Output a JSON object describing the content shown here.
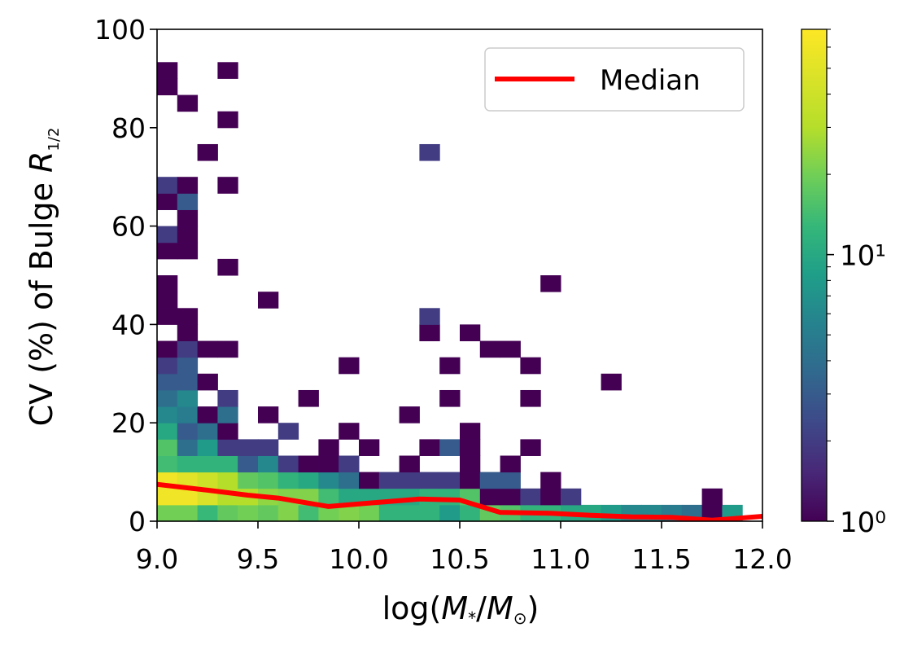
{
  "chart_data": {
    "type": "heatmap",
    "title": "",
    "xlabel": "log(M*/M⊙)",
    "ylabel": "CV (%) of Bulge R1/2",
    "xlim": [
      9.0,
      12.0
    ],
    "ylim": [
      0,
      100
    ],
    "x_ticks": [
      9.0,
      9.5,
      10.0,
      10.5,
      11.0,
      11.5,
      12.0
    ],
    "x_tick_labels": [
      "9.0",
      "9.5",
      "10.0",
      "10.5",
      "11.0",
      "11.5",
      "12.0"
    ],
    "y_ticks": [
      0,
      20,
      40,
      60,
      80,
      100
    ],
    "y_tick_labels": [
      "0",
      "20",
      "40",
      "60",
      "80",
      "100"
    ],
    "bin_width_x": 0.1,
    "bin_width_y": 3.33,
    "colormap": "viridis",
    "colorbar": {
      "scale": "log",
      "min": 1,
      "max": 70,
      "tick_labels": [
        "10⁰",
        "10¹"
      ],
      "tick_values": [
        1,
        10
      ]
    },
    "cells": [
      [
        9.0,
        0.0,
        20
      ],
      [
        9.1,
        0.0,
        20
      ],
      [
        9.2,
        0.0,
        13
      ],
      [
        9.3,
        0.0,
        18
      ],
      [
        9.4,
        0.0,
        20
      ],
      [
        9.5,
        0.0,
        18
      ],
      [
        9.6,
        0.0,
        22
      ],
      [
        9.7,
        0.0,
        14
      ],
      [
        9.8,
        0.0,
        20
      ],
      [
        9.9,
        0.0,
        22
      ],
      [
        10.0,
        0.0,
        20
      ],
      [
        10.1,
        0.0,
        12
      ],
      [
        10.2,
        0.0,
        12
      ],
      [
        10.3,
        0.0,
        12
      ],
      [
        10.4,
        0.0,
        8
      ],
      [
        10.5,
        0.0,
        12
      ],
      [
        10.6,
        0.0,
        18
      ],
      [
        10.7,
        0.0,
        16
      ],
      [
        10.8,
        0.0,
        12
      ],
      [
        10.9,
        0.0,
        12
      ],
      [
        11.0,
        0.0,
        10
      ],
      [
        11.1,
        0.0,
        10
      ],
      [
        11.2,
        0.0,
        8
      ],
      [
        11.3,
        0.0,
        6
      ],
      [
        11.4,
        0.0,
        6
      ],
      [
        11.5,
        0.0,
        5
      ],
      [
        11.6,
        0.0,
        4
      ],
      [
        11.7,
        0.0,
        1
      ],
      [
        11.8,
        0.0,
        8
      ],
      [
        9.0,
        3.33,
        60
      ],
      [
        9.1,
        3.33,
        60
      ],
      [
        9.2,
        3.33,
        45
      ],
      [
        9.3,
        3.33,
        30
      ],
      [
        9.4,
        3.33,
        30
      ],
      [
        9.5,
        3.33,
        24
      ],
      [
        9.6,
        3.33,
        22
      ],
      [
        9.7,
        3.33,
        22
      ],
      [
        9.8,
        3.33,
        14
      ],
      [
        9.9,
        3.33,
        10
      ],
      [
        10.0,
        3.33,
        10
      ],
      [
        10.1,
        3.33,
        10
      ],
      [
        10.2,
        3.33,
        10
      ],
      [
        10.3,
        3.33,
        12
      ],
      [
        10.4,
        3.33,
        12
      ],
      [
        10.5,
        3.33,
        16
      ],
      [
        10.6,
        3.33,
        1
      ],
      [
        10.7,
        3.33,
        1
      ],
      [
        10.8,
        3.33,
        2
      ],
      [
        10.9,
        3.33,
        1
      ],
      [
        11.0,
        3.33,
        2
      ],
      [
        11.7,
        3.33,
        1
      ],
      [
        9.0,
        6.67,
        60
      ],
      [
        9.1,
        6.67,
        50
      ],
      [
        9.2,
        6.67,
        40
      ],
      [
        9.3,
        6.67,
        30
      ],
      [
        9.4,
        6.67,
        18
      ],
      [
        9.5,
        6.67,
        16
      ],
      [
        9.6,
        6.67,
        12
      ],
      [
        9.7,
        6.67,
        10
      ],
      [
        9.8,
        6.67,
        6
      ],
      [
        9.9,
        6.67,
        4
      ],
      [
        10.0,
        6.67,
        1
      ],
      [
        10.1,
        6.67,
        2
      ],
      [
        10.2,
        6.67,
        2
      ],
      [
        10.3,
        6.67,
        2
      ],
      [
        10.4,
        6.67,
        2
      ],
      [
        10.5,
        6.67,
        1
      ],
      [
        10.6,
        6.67,
        3
      ],
      [
        10.7,
        6.67,
        3
      ],
      [
        10.9,
        6.67,
        1
      ],
      [
        9.0,
        10.0,
        14
      ],
      [
        9.1,
        10.0,
        12
      ],
      [
        9.2,
        10.0,
        12
      ],
      [
        9.3,
        10.0,
        12
      ],
      [
        9.4,
        10.0,
        3
      ],
      [
        9.5,
        10.0,
        6
      ],
      [
        9.6,
        10.0,
        2
      ],
      [
        9.7,
        10.0,
        1
      ],
      [
        9.8,
        10.0,
        1
      ],
      [
        9.9,
        10.0,
        2
      ],
      [
        10.2,
        10.0,
        1
      ],
      [
        10.5,
        10.0,
        1
      ],
      [
        10.7,
        10.0,
        1
      ],
      [
        9.0,
        13.33,
        16
      ],
      [
        9.1,
        13.33,
        4
      ],
      [
        9.2,
        13.33,
        8
      ],
      [
        9.3,
        13.33,
        2
      ],
      [
        9.4,
        13.33,
        2
      ],
      [
        9.5,
        13.33,
        2
      ],
      [
        9.8,
        13.33,
        1
      ],
      [
        10.0,
        13.33,
        1
      ],
      [
        10.3,
        13.33,
        1
      ],
      [
        10.4,
        13.33,
        3
      ],
      [
        10.5,
        13.33,
        1
      ],
      [
        10.8,
        13.33,
        1
      ],
      [
        9.0,
        16.67,
        10
      ],
      [
        9.1,
        16.67,
        3
      ],
      [
        9.2,
        16.67,
        4
      ],
      [
        9.3,
        16.67,
        1
      ],
      [
        9.6,
        16.67,
        2
      ],
      [
        9.9,
        16.67,
        1
      ],
      [
        10.5,
        16.67,
        1
      ],
      [
        9.0,
        20.0,
        6
      ],
      [
        9.1,
        20.0,
        5
      ],
      [
        9.2,
        20.0,
        1
      ],
      [
        9.3,
        20.0,
        4
      ],
      [
        9.5,
        20.0,
        1
      ],
      [
        10.2,
        20.0,
        1
      ],
      [
        9.0,
        23.33,
        4
      ],
      [
        9.1,
        23.33,
        6
      ],
      [
        9.3,
        23.33,
        2
      ],
      [
        9.7,
        23.33,
        1
      ],
      [
        10.4,
        23.33,
        1
      ],
      [
        10.8,
        23.33,
        1
      ],
      [
        9.0,
        26.67,
        3
      ],
      [
        9.1,
        26.67,
        3
      ],
      [
        9.2,
        26.67,
        1
      ],
      [
        11.2,
        26.67,
        1
      ],
      [
        9.0,
        30.0,
        2
      ],
      [
        9.1,
        30.0,
        3
      ],
      [
        9.9,
        30.0,
        1
      ],
      [
        10.4,
        30.0,
        1
      ],
      [
        10.8,
        30.0,
        1
      ],
      [
        9.0,
        33.33,
        1
      ],
      [
        9.1,
        33.33,
        2
      ],
      [
        9.2,
        33.33,
        1
      ],
      [
        9.3,
        33.33,
        1
      ],
      [
        10.6,
        33.33,
        1
      ],
      [
        10.7,
        33.33,
        1
      ],
      [
        9.1,
        36.67,
        1
      ],
      [
        10.3,
        36.67,
        1
      ],
      [
        10.5,
        36.67,
        1
      ],
      [
        9.0,
        40.0,
        1
      ],
      [
        9.1,
        40.0,
        1
      ],
      [
        10.3,
        40.0,
        2
      ],
      [
        9.0,
        43.33,
        1
      ],
      [
        9.5,
        43.33,
        1
      ],
      [
        9.0,
        46.67,
        1
      ],
      [
        10.9,
        46.67,
        1
      ],
      [
        9.3,
        50.0,
        1
      ],
      [
        9.0,
        53.33,
        1
      ],
      [
        9.1,
        53.33,
        1
      ],
      [
        9.0,
        56.67,
        2
      ],
      [
        9.1,
        56.67,
        1
      ],
      [
        9.1,
        60.0,
        1
      ],
      [
        9.0,
        63.33,
        1
      ],
      [
        9.1,
        63.33,
        3
      ],
      [
        9.0,
        66.67,
        2
      ],
      [
        9.1,
        66.67,
        1
      ],
      [
        9.3,
        66.67,
        1
      ],
      [
        10.3,
        73.33,
        2
      ],
      [
        9.2,
        73.33,
        1
      ],
      [
        9.3,
        80.0,
        1
      ],
      [
        9.1,
        83.33,
        1
      ],
      [
        9.0,
        86.67,
        1
      ],
      [
        9.0,
        90.0,
        1
      ],
      [
        9.3,
        90.0,
        1
      ]
    ],
    "series": [
      {
        "name": "Median",
        "color": "#ff0000",
        "x": [
          9.0,
          9.25,
          9.45,
          9.6,
          9.85,
          10.05,
          10.3,
          10.5,
          10.7,
          10.95,
          11.15,
          11.35,
          11.55,
          11.75,
          12.0
        ],
        "y": [
          7.5,
          6.3,
          5.3,
          4.7,
          3.0,
          3.7,
          4.5,
          4.3,
          1.8,
          1.6,
          1.2,
          0.9,
          0.8,
          0.2,
          1.0
        ]
      }
    ],
    "legend": {
      "position": "top-right",
      "entries": [
        "Median"
      ]
    }
  }
}
